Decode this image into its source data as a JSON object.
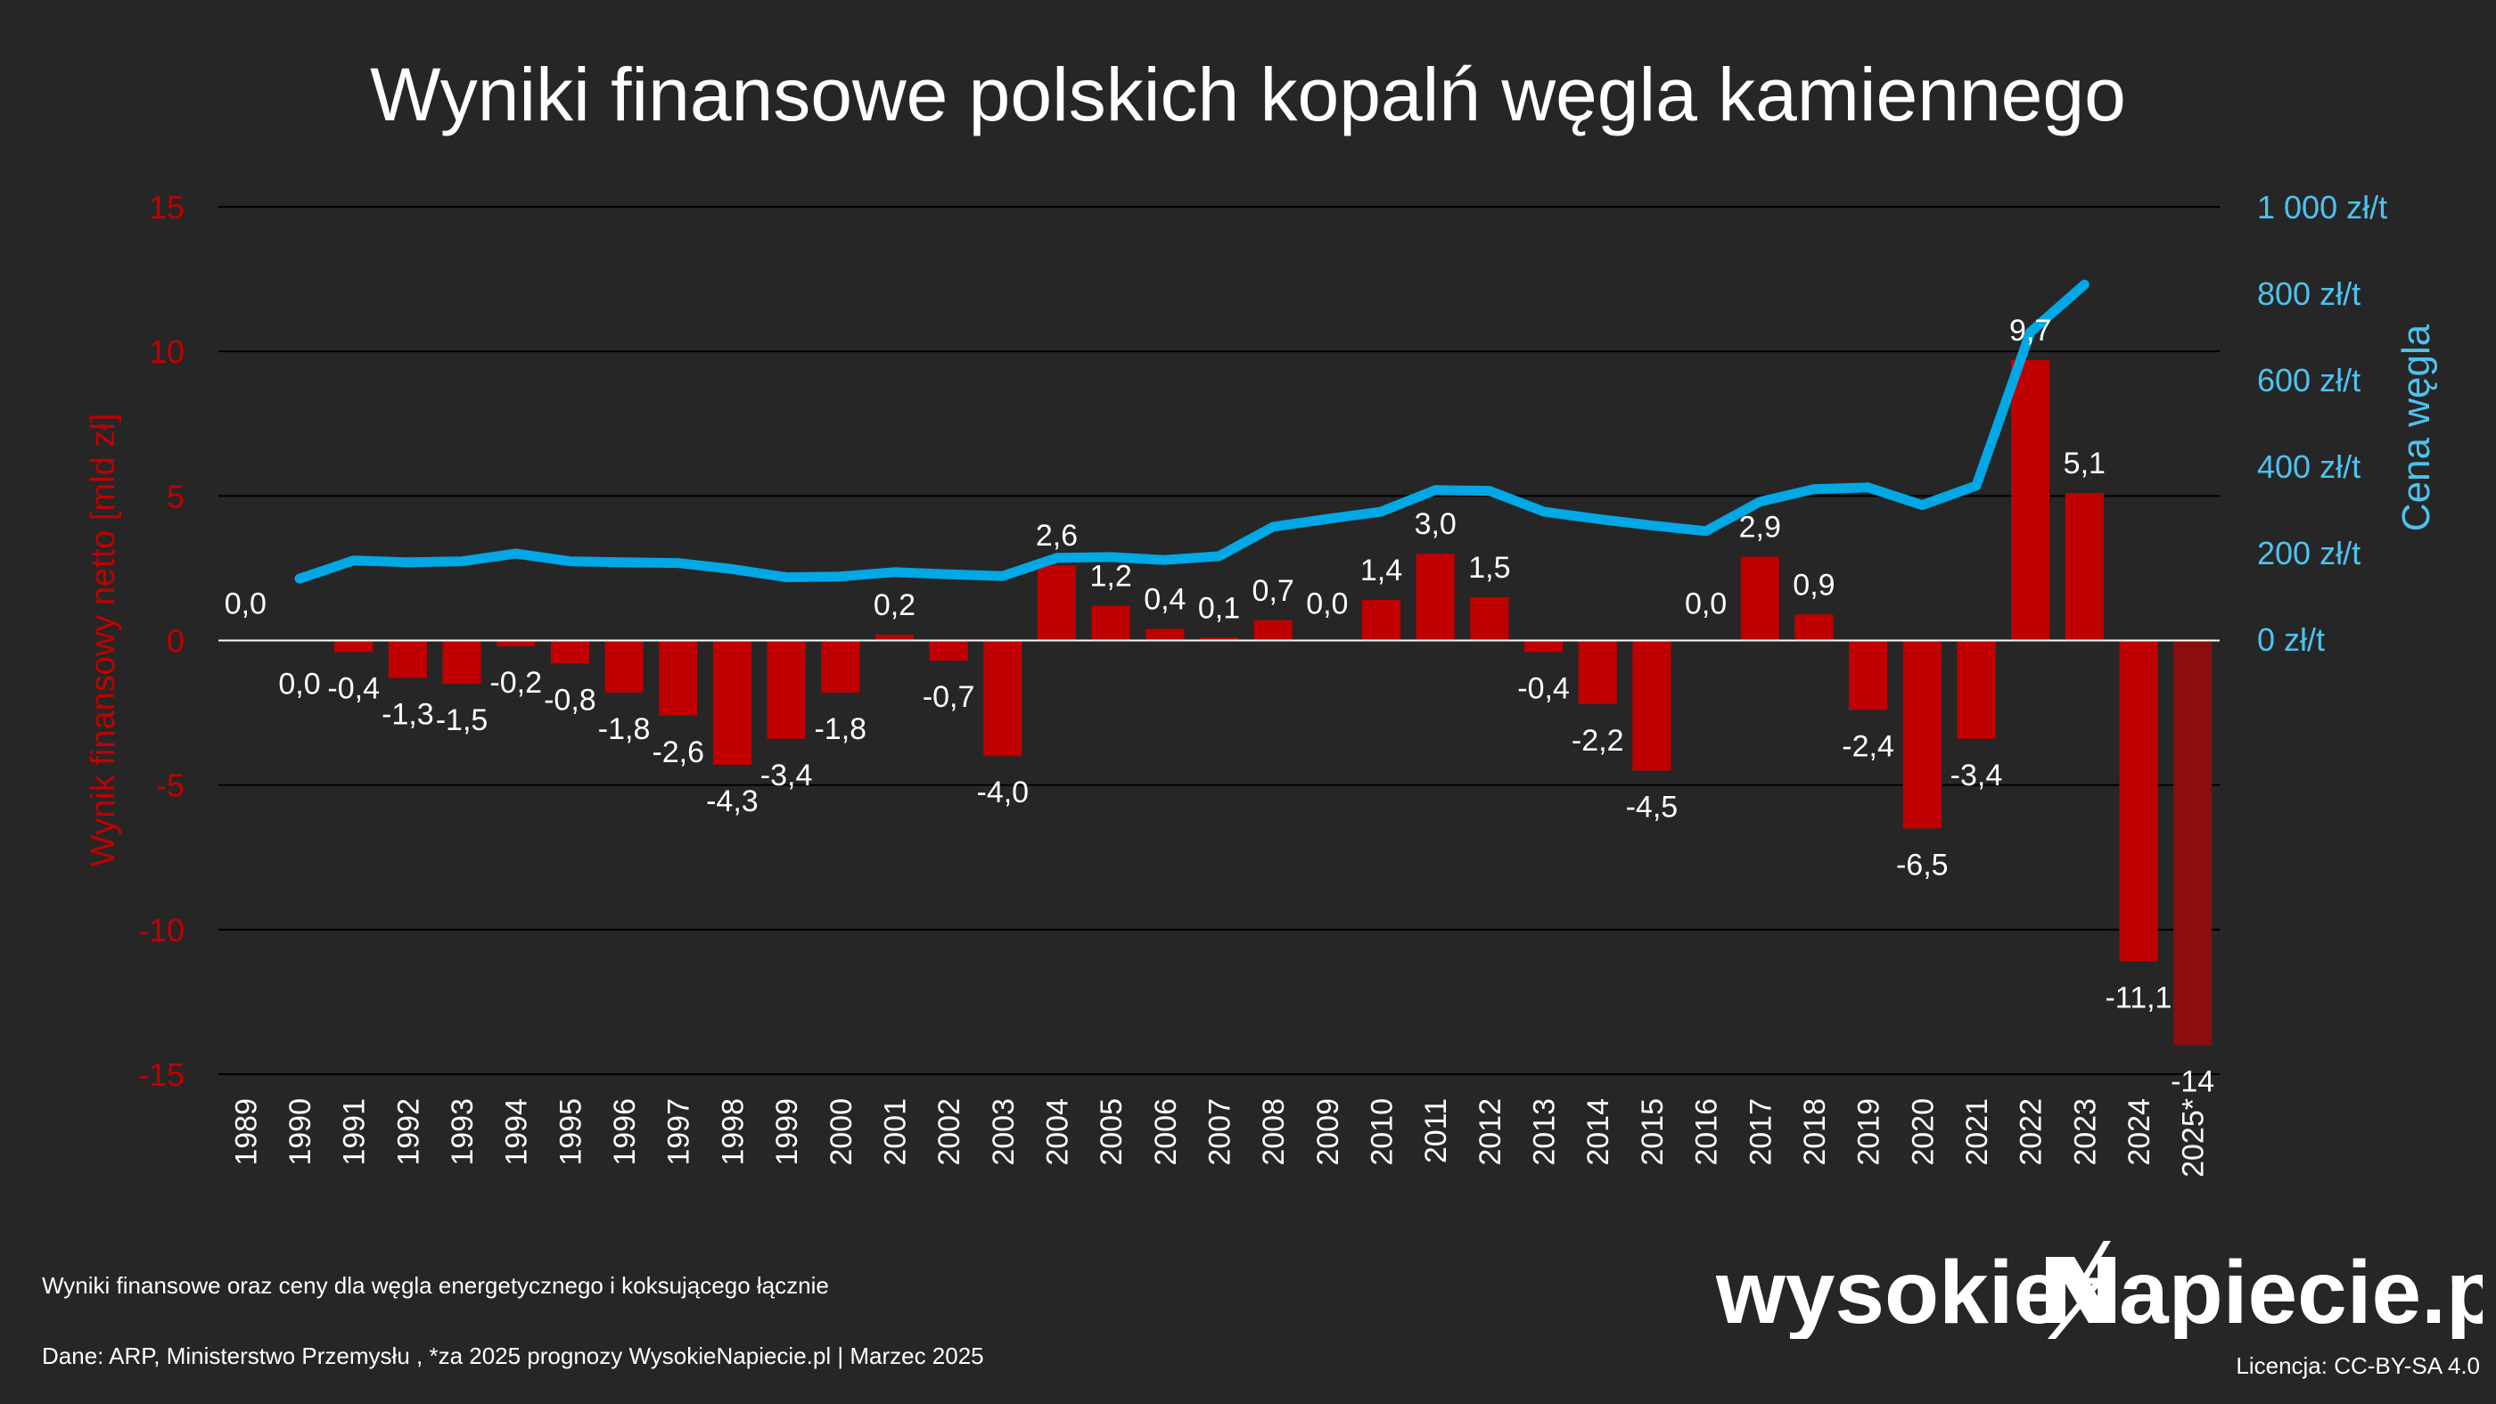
{
  "colors": {
    "background": "#262626",
    "bar": "#c00000",
    "bar_forecast": "#8b0d0d",
    "price_line": "#00a8e6",
    "left_axis": "#c00000",
    "right_axis": "#4dc3ef",
    "text": "#ffffff"
  },
  "footer": {
    "note": "Wyniki finansowe oraz ceny dla węgla energetycznego i koksującego łącznie",
    "source": "Dane: ARP, Ministerstwo Przemysłu , *za 2025 prognozy WysokieNapiecie.pl  |  Marzec 2025",
    "logo_left": "wysokie",
    "logo_right": "apiecie.pl",
    "license": "Licencja: CC-BY-SA 4.0"
  },
  "chart_data": {
    "type": "bar",
    "title": "Wyniki finansowe polskich kopalń węgla kamiennego",
    "ylabel": "Wynik finansowy netto [mld zł]",
    "y2label": "Cena węgla",
    "ylim": [
      -15,
      15
    ],
    "yticks": [
      "15",
      "10",
      "5",
      "0",
      "-5",
      "-10",
      "-15"
    ],
    "y2lim": [
      0,
      1000
    ],
    "y2ticks": [
      "1 000 zł/t",
      "800 zł/t",
      "600 zł/t",
      "400 zł/t",
      "200 zł/t",
      "0 zł/t"
    ],
    "grid": true,
    "categories": [
      "1989",
      "1990",
      "1991",
      "1992",
      "1993",
      "1994",
      "1995",
      "1996",
      "1997",
      "1998",
      "1999",
      "2000",
      "2001",
      "2002",
      "2003",
      "2004",
      "2005",
      "2006",
      "2007",
      "2008",
      "2009",
      "2010",
      "2011",
      "2012",
      "2013",
      "2014",
      "2015",
      "2016",
      "2017",
      "2018",
      "2019",
      "2020",
      "2021",
      "2022",
      "2023",
      "2024",
      "2025*"
    ],
    "series": [
      {
        "kind": "bar",
        "values": [
          0.0,
          0.0,
          -0.4,
          -1.3,
          -1.5,
          -0.2,
          -0.8,
          -1.8,
          -2.6,
          -4.3,
          -3.4,
          -1.8,
          0.2,
          -0.7,
          -4.0,
          2.6,
          1.2,
          0.4,
          0.1,
          0.7,
          0.0,
          1.4,
          3.0,
          1.5,
          -0.4,
          -2.2,
          -4.5,
          0.0,
          2.9,
          0.9,
          -2.4,
          -6.5,
          -3.4,
          9.7,
          5.1,
          -11.1,
          -14.0
        ],
        "labels": [
          "0,0",
          "0,0",
          "-0,4",
          "-1,3",
          "-1,5",
          "-0,2",
          "-0,8",
          "-1,8",
          "-2,6",
          "-4,3",
          "-3,4",
          "-1,8",
          "0,2",
          "-0,7",
          "-4,0",
          "2,6",
          "1,2",
          "0,4",
          "0,1",
          "0,7",
          "0,0",
          "1,4",
          "3,0",
          "1,5",
          "-0,4",
          "-2,2",
          "-4,5",
          "0,0",
          "2,9",
          "0,9",
          "-2,4",
          "-6,5",
          "-3,4",
          "9,7",
          "5,1",
          "-11,1",
          "-14"
        ]
      },
      {
        "kind": "line",
        "axis": "right",
        "values": [
          null,
          140,
          182,
          178,
          180,
          198,
          180,
          178,
          176,
          162,
          143,
          145,
          155,
          150,
          146,
          188,
          190,
          183,
          192,
          260,
          278,
          295,
          345,
          343,
          295,
          278,
          263,
          250,
          318,
          347,
          351,
          310,
          355,
          710,
          820,
          null,
          null
        ]
      }
    ]
  }
}
